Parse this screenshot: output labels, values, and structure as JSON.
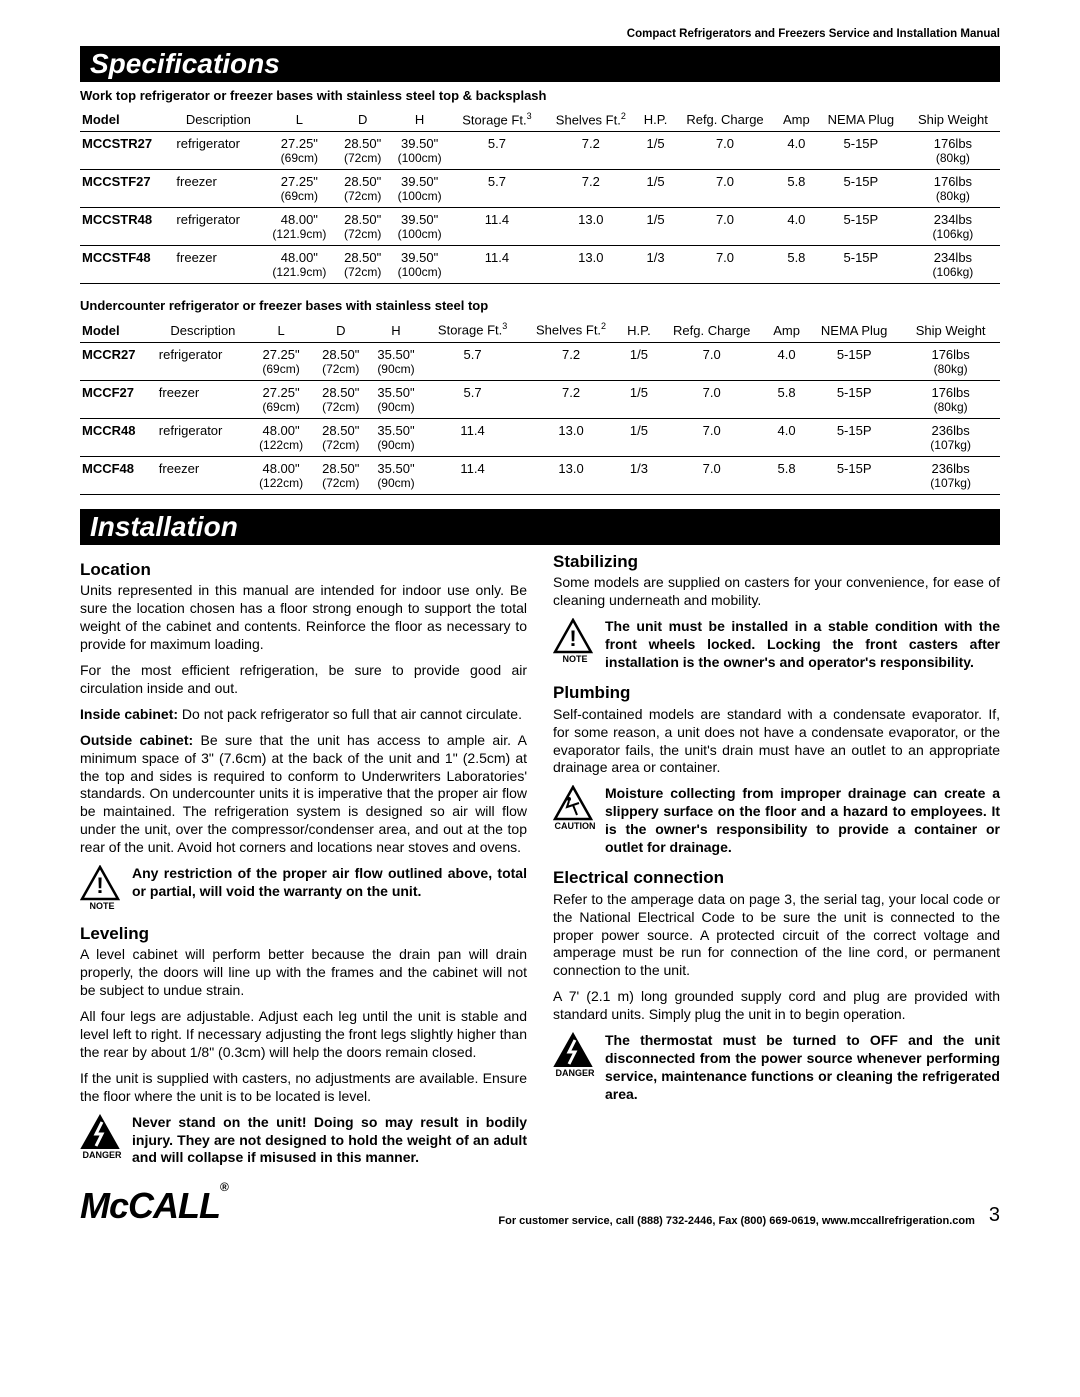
{
  "header_right": "Compact Refrigerators and Freezers Service and Installation Manual",
  "section1_title": "Specifications",
  "table1": {
    "caption": "Work top refrigerator or freezer bases with stainless steel top & backsplash",
    "columns": [
      "Model",
      "Description",
      "L",
      "D",
      "H",
      "Storage Ft.³",
      "Shelves Ft.²",
      "H.P.",
      "Refg. Charge",
      "Amp",
      "NEMA Plug",
      "Ship Weight"
    ],
    "rows": [
      {
        "model": "MCCSTR27",
        "desc": "refrigerator",
        "l1": "27.25\"",
        "l2": "(69cm)",
        "d1": "28.50\"",
        "d2": "(72cm)",
        "h1": "39.50\"",
        "h2": "(100cm)",
        "storage": "5.7",
        "shelves": "7.2",
        "hp": "1/5",
        "refg": "7.0",
        "amp": "4.0",
        "nema": "5-15P",
        "sw1": "176lbs",
        "sw2": "(80kg)"
      },
      {
        "model": "MCCSTF27",
        "desc": "freezer",
        "l1": "27.25\"",
        "l2": "(69cm)",
        "d1": "28.50\"",
        "d2": "(72cm)",
        "h1": "39.50\"",
        "h2": "(100cm)",
        "storage": "5.7",
        "shelves": "7.2",
        "hp": "1/5",
        "refg": "7.0",
        "amp": "5.8",
        "nema": "5-15P",
        "sw1": "176lbs",
        "sw2": "(80kg)"
      },
      {
        "model": "MCCSTR48",
        "desc": "refrigerator",
        "l1": "48.00\"",
        "l2": "(121.9cm)",
        "d1": "28.50\"",
        "d2": "(72cm)",
        "h1": "39.50\"",
        "h2": "(100cm)",
        "storage": "11.4",
        "shelves": "13.0",
        "hp": "1/5",
        "refg": "7.0",
        "amp": "4.0",
        "nema": "5-15P",
        "sw1": "234lbs",
        "sw2": "(106kg)"
      },
      {
        "model": "MCCSTF48",
        "desc": "freezer",
        "l1": "48.00\"",
        "l2": "(121.9cm)",
        "d1": "28.50\"",
        "d2": "(72cm)",
        "h1": "39.50\"",
        "h2": "(100cm)",
        "storage": "11.4",
        "shelves": "13.0",
        "hp": "1/3",
        "refg": "7.0",
        "amp": "5.8",
        "nema": "5-15P",
        "sw1": "234lbs",
        "sw2": "(106kg)"
      }
    ]
  },
  "table2": {
    "caption": "Undercounter refrigerator or freezer bases with stainless steel top",
    "columns": [
      "Model",
      "Description",
      "L",
      "D",
      "H",
      "Storage Ft.³",
      "Shelves Ft.²",
      "H.P.",
      "Refg. Charge",
      "Amp",
      "NEMA Plug",
      "Ship Weight"
    ],
    "rows": [
      {
        "model": "MCCR27",
        "desc": "refrigerator",
        "l1": "27.25\"",
        "l2": "(69cm)",
        "d1": "28.50\"",
        "d2": "(72cm)",
        "h1": "35.50\"",
        "h2": "(90cm)",
        "storage": "5.7",
        "shelves": "7.2",
        "hp": "1/5",
        "refg": "7.0",
        "amp": "4.0",
        "nema": "5-15P",
        "sw1": "176lbs",
        "sw2": "(80kg)"
      },
      {
        "model": "MCCF27",
        "desc": "freezer",
        "l1": "27.25\"",
        "l2": "(69cm)",
        "d1": "28.50\"",
        "d2": "(72cm)",
        "h1": "35.50\"",
        "h2": "(90cm)",
        "storage": "5.7",
        "shelves": "7.2",
        "hp": "1/5",
        "refg": "7.0",
        "amp": "5.8",
        "nema": "5-15P",
        "sw1": "176lbs",
        "sw2": "(80kg)"
      },
      {
        "model": "MCCR48",
        "desc": "refrigerator",
        "l1": "48.00\"",
        "l2": "(122cm)",
        "d1": "28.50\"",
        "d2": "(72cm)",
        "h1": "35.50\"",
        "h2": "(90cm)",
        "storage": "11.4",
        "shelves": "13.0",
        "hp": "1/5",
        "refg": "7.0",
        "amp": "4.0",
        "nema": "5-15P",
        "sw1": "236lbs",
        "sw2": "(107kg)"
      },
      {
        "model": "MCCF48",
        "desc": "freezer",
        "l1": "48.00\"",
        "l2": "(122cm)",
        "d1": "28.50\"",
        "d2": "(72cm)",
        "h1": "35.50\"",
        "h2": "(90cm)",
        "storage": "11.4",
        "shelves": "13.0",
        "hp": "1/3",
        "refg": "7.0",
        "amp": "5.8",
        "nema": "5-15P",
        "sw1": "236lbs",
        "sw2": "(107kg)"
      }
    ]
  },
  "section2_title": "Installation",
  "body": {
    "h_location": "Location",
    "p_loc1": "Units represented in this manual are intended for indoor use only. Be sure the location chosen has a floor strong enough to support the total weight of the cabinet and contents. Reinforce the floor as necessary to provide for maximum loading.",
    "p_loc2": "For the most efficient refrigeration, be sure to provide good air circulation inside and out.",
    "p_loc3a": "Inside cabinet:",
    "p_loc3b": " Do not pack refrigerator so full that air cannot circulate.",
    "p_loc4a": "Outside cabinet:",
    "p_loc4b": " Be sure that the unit has access to ample air. A minimum space of 3\" (7.6cm) at the back of the unit and 1\" (2.5cm) at the top and sides is required to conform to Underwriters Laboratories' standards. On undercounter units it is imperative that the proper air flow be maintained. The refrigeration system is designed so air will flow under the unit, over the compressor/condenser area, and out at the top rear of the unit. Avoid hot corners and locations near stoves and ovens.",
    "note1": {
      "label": "NOTE",
      "text": "Any restriction of the proper air flow outlined above, total or partial, will void the warranty on the unit."
    },
    "h_leveling": "Leveling",
    "p_lev1": "A level cabinet will perform better because the drain pan will drain properly, the doors will line up with the frames and the cabinet will not be subject to undue strain.",
    "p_lev2": "All four legs are adjustable. Adjust each leg until the unit is stable and level left to right. If necessary adjusting the front legs slightly higher than the rear by about 1/8\" (0.3cm) will help the doors remain closed.",
    "p_lev3": "If the unit is supplied with casters, no adjustments are available. Ensure the floor where the unit is to be located is level.",
    "note2": {
      "label": "DANGER",
      "text": "Never stand on the unit! Doing so may result in bodily injury. They are not designed to hold the weight of an adult and will collapse if misused in this manner."
    },
    "h_stabilizing": "Stabilizing",
    "p_stab1": "Some models are supplied on casters for your convenience, for ease of cleaning underneath and mobility.",
    "note3": {
      "label": "NOTE",
      "text": "The unit must be installed in a stable condition with the front wheels locked. Locking the front casters after installation is the owner's and operator's responsibility."
    },
    "h_plumbing": "Plumbing",
    "p_plumb1": "Self-contained models are standard with a condensate evaporator. If, for some reason, a unit does not have a condensate evaporator, or the evaporator fails, the unit's drain must have an outlet to an appropriate drainage area or container.",
    "note4": {
      "label": "CAUTION",
      "text": "Moisture collecting from improper drainage can create a slippery surface on the floor and a hazard to employees. It is the owner's responsibility to provide a container or outlet for drainage."
    },
    "h_electrical": "Electrical connection",
    "p_elec1": "Refer to the amperage data on page 3, the serial tag, your local code or the National Electrical Code to be sure the unit is connected to the proper power source. A protected circuit of the correct voltage and amperage must be run for connection of the line cord, or permanent connection to the unit.",
    "p_elec2": "A 7' (2.1 m) long grounded supply cord and plug are provided with standard units. Simply plug the unit in to begin operation.",
    "note5": {
      "label": "DANGER",
      "text": "The thermostat must be turned to OFF and the unit disconnected from the power source whenever performing service, maintenance functions or cleaning the refrigerated area."
    }
  },
  "footer": {
    "logo": "McCALL",
    "service": "For customer service, call (888) 732-2446, Fax (800) 669-0619, www.mccallrefrigeration.com",
    "page": "3"
  },
  "icons": {
    "triangle_note": {
      "stroke": "#000000",
      "fill": "#ffffff",
      "bang": "#000000"
    },
    "triangle_danger": {
      "stroke": "#000000",
      "fill": "#000000",
      "bolt": "#ffffff"
    },
    "triangle_caution": {
      "stroke": "#000000",
      "fill": "#ffffff",
      "slip": "#000000"
    }
  }
}
